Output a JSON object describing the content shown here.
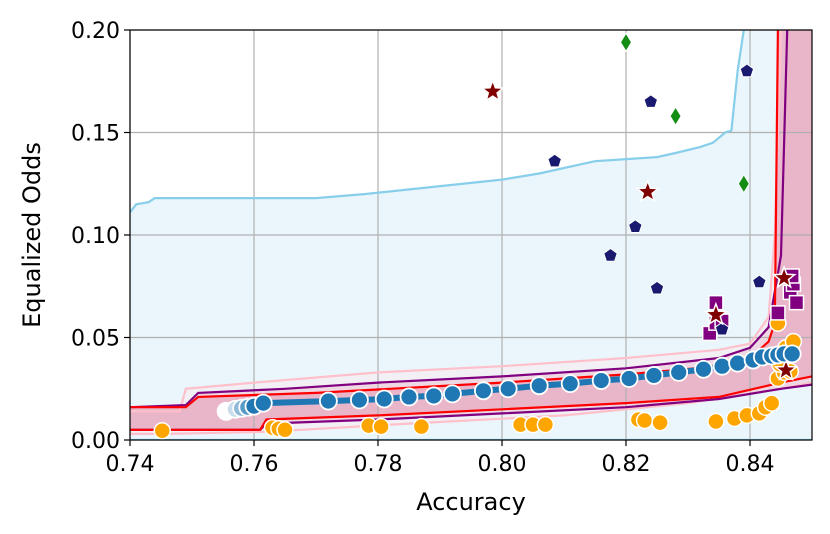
{
  "chart_data": {
    "type": "scatter",
    "xlabel": "Accuracy",
    "ylabel": "Equalized Odds",
    "xlim": [
      0.74,
      0.85
    ],
    "ylim": [
      0.0,
      0.2
    ],
    "x_ticks": [
      "0.74",
      "0.76",
      "0.78",
      "0.80",
      "0.82",
      "0.84"
    ],
    "y_ticks": [
      "0.00",
      "0.05",
      "0.10",
      "0.15",
      "0.20"
    ],
    "grid": true,
    "legend": "none",
    "bands": [
      {
        "color": "#87ceeb",
        "fill": "#e6f4fa",
        "upper": [
          [
            0.74,
            0.111
          ],
          [
            0.741,
            0.115
          ],
          [
            0.743,
            0.116
          ],
          [
            0.744,
            0.118
          ],
          [
            0.77,
            0.118
          ],
          [
            0.778,
            0.12
          ],
          [
            0.8,
            0.127
          ],
          [
            0.806,
            0.13
          ],
          [
            0.815,
            0.136
          ],
          [
            0.825,
            0.138
          ],
          [
            0.828,
            0.14
          ],
          [
            0.832,
            0.143
          ],
          [
            0.834,
            0.145
          ],
          [
            0.836,
            0.15
          ],
          [
            0.837,
            0.151
          ],
          [
            0.838,
            0.18
          ],
          [
            0.839,
            0.2
          ]
        ],
        "lower": [
          [
            0.74,
            0.0
          ],
          [
            0.85,
            0.0
          ]
        ]
      },
      {
        "color": "#ffc0cb",
        "fill": "#f4eef3",
        "upper": [
          [
            0.74,
            0.014
          ],
          [
            0.748,
            0.014
          ],
          [
            0.749,
            0.025
          ],
          [
            0.76,
            0.028
          ],
          [
            0.78,
            0.033
          ],
          [
            0.8,
            0.036
          ],
          [
            0.82,
            0.04
          ],
          [
            0.835,
            0.044
          ],
          [
            0.84,
            0.047
          ],
          [
            0.843,
            0.06
          ],
          [
            0.844,
            0.1
          ],
          [
            0.845,
            0.2
          ]
        ],
        "lower": [
          [
            0.74,
            0.003
          ],
          [
            0.746,
            0.003
          ],
          [
            0.762,
            0.004
          ],
          [
            0.785,
            0.008
          ],
          [
            0.81,
            0.012
          ],
          [
            0.83,
            0.018
          ],
          [
            0.845,
            0.025
          ],
          [
            0.85,
            0.028
          ]
        ]
      },
      {
        "color": "#800080",
        "fill": "#ecd0dc",
        "upper": [
          [
            0.74,
            0.016
          ],
          [
            0.749,
            0.017
          ],
          [
            0.751,
            0.023
          ],
          [
            0.765,
            0.025
          ],
          [
            0.78,
            0.028
          ],
          [
            0.8,
            0.031
          ],
          [
            0.82,
            0.035
          ],
          [
            0.835,
            0.04
          ],
          [
            0.84,
            0.045
          ],
          [
            0.843,
            0.055
          ],
          [
            0.845,
            0.09
          ],
          [
            0.846,
            0.2
          ]
        ],
        "lower": [
          [
            0.74,
            0.005
          ],
          [
            0.761,
            0.005
          ],
          [
            0.762,
            0.008
          ],
          [
            0.78,
            0.01
          ],
          [
            0.8,
            0.013
          ],
          [
            0.82,
            0.016
          ],
          [
            0.835,
            0.02
          ],
          [
            0.845,
            0.025
          ],
          [
            0.85,
            0.027
          ]
        ]
      },
      {
        "color": "#ff0000",
        "fill": "#e7aac0",
        "upper": [
          [
            0.74,
            0.016
          ],
          [
            0.749,
            0.016
          ],
          [
            0.751,
            0.021
          ],
          [
            0.77,
            0.023
          ],
          [
            0.8,
            0.028
          ],
          [
            0.82,
            0.032
          ],
          [
            0.835,
            0.036
          ],
          [
            0.84,
            0.04
          ],
          [
            0.843,
            0.048
          ],
          [
            0.844,
            0.057
          ],
          [
            0.8445,
            0.2
          ]
        ],
        "lower": [
          [
            0.74,
            0.005
          ],
          [
            0.761,
            0.005
          ],
          [
            0.762,
            0.01
          ],
          [
            0.78,
            0.012
          ],
          [
            0.8,
            0.015
          ],
          [
            0.82,
            0.018
          ],
          [
            0.835,
            0.021
          ],
          [
            0.845,
            0.028
          ],
          [
            0.85,
            0.031
          ]
        ]
      }
    ],
    "main_curve": {
      "color": "#1f77b4",
      "points": [
        [
          0.7555,
          0.014
        ],
        [
          0.757,
          0.015
        ],
        [
          0.758,
          0.0155
        ],
        [
          0.759,
          0.016
        ],
        [
          0.76,
          0.0165
        ],
        [
          0.7615,
          0.018
        ],
        [
          0.772,
          0.019
        ],
        [
          0.777,
          0.0195
        ],
        [
          0.781,
          0.02
        ],
        [
          0.785,
          0.021
        ],
        [
          0.789,
          0.0215
        ],
        [
          0.792,
          0.0225
        ],
        [
          0.797,
          0.024
        ],
        [
          0.801,
          0.025
        ],
        [
          0.806,
          0.0265
        ],
        [
          0.811,
          0.0275
        ],
        [
          0.816,
          0.029
        ],
        [
          0.8205,
          0.03
        ],
        [
          0.8245,
          0.0315
        ],
        [
          0.8285,
          0.033
        ],
        [
          0.8325,
          0.0345
        ],
        [
          0.8355,
          0.036
        ],
        [
          0.838,
          0.0375
        ],
        [
          0.8405,
          0.039
        ],
        [
          0.842,
          0.0405
        ],
        [
          0.8435,
          0.041
        ],
        [
          0.8445,
          0.0415
        ],
        [
          0.8455,
          0.042
        ],
        [
          0.8468,
          0.042
        ]
      ]
    },
    "orange_points": [
      [
        0.7452,
        0.0045
      ],
      [
        0.763,
        0.006
      ],
      [
        0.764,
        0.0055
      ],
      [
        0.765,
        0.005
      ],
      [
        0.7785,
        0.007
      ],
      [
        0.7805,
        0.0065
      ],
      [
        0.787,
        0.0065
      ],
      [
        0.803,
        0.0075
      ],
      [
        0.805,
        0.0075
      ],
      [
        0.807,
        0.0075
      ],
      [
        0.822,
        0.01
      ],
      [
        0.823,
        0.0095
      ],
      [
        0.8255,
        0.0085
      ],
      [
        0.8345,
        0.009
      ],
      [
        0.8375,
        0.0105
      ],
      [
        0.8395,
        0.012
      ],
      [
        0.8415,
        0.013
      ],
      [
        0.8425,
        0.016
      ],
      [
        0.8435,
        0.018
      ],
      [
        0.8445,
        0.03
      ],
      [
        0.8455,
        0.033
      ],
      [
        0.8465,
        0.0335
      ],
      [
        0.8448,
        0.037
      ],
      [
        0.8458,
        0.045
      ],
      [
        0.847,
        0.048
      ],
      [
        0.8445,
        0.057
      ]
    ],
    "purple_squares": [
      [
        0.8335,
        0.052
      ],
      [
        0.8345,
        0.057
      ],
      [
        0.8345,
        0.067
      ],
      [
        0.8355,
        0.058
      ],
      [
        0.8445,
        0.062
      ],
      [
        0.8465,
        0.072
      ],
      [
        0.847,
        0.076
      ],
      [
        0.8468,
        0.08
      ],
      [
        0.8475,
        0.067
      ]
    ],
    "navy_pentagons": [
      [
        0.8085,
        0.136
      ],
      [
        0.8175,
        0.09
      ],
      [
        0.8215,
        0.104
      ],
      [
        0.824,
        0.165
      ],
      [
        0.825,
        0.074
      ],
      [
        0.8355,
        0.054
      ],
      [
        0.8395,
        0.18
      ],
      [
        0.8415,
        0.077
      ]
    ],
    "green_diamonds": [
      [
        0.82,
        0.194
      ],
      [
        0.828,
        0.158
      ],
      [
        0.839,
        0.125
      ]
    ],
    "red_stars": [
      [
        0.7985,
        0.17
      ],
      [
        0.8235,
        0.121
      ],
      [
        0.8345,
        0.061
      ],
      [
        0.8455,
        0.079
      ],
      [
        0.8458,
        0.034
      ]
    ]
  }
}
